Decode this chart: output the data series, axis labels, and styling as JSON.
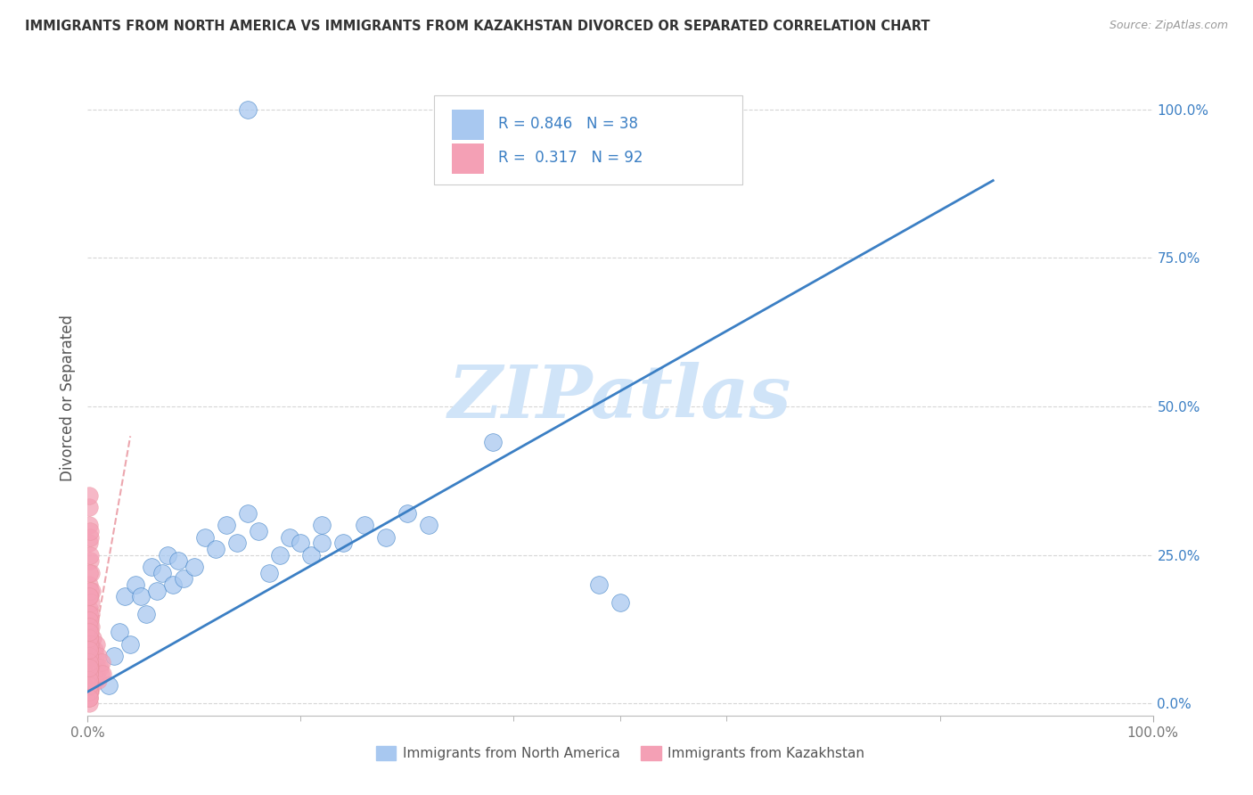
{
  "title": "IMMIGRANTS FROM NORTH AMERICA VS IMMIGRANTS FROM KAZAKHSTAN DIVORCED OR SEPARATED CORRELATION CHART",
  "source": "Source: ZipAtlas.com",
  "ylabel": "Divorced or Separated",
  "xlim": [
    0.0,
    1.0
  ],
  "ylim": [
    -0.02,
    1.05
  ],
  "xtick_positions": [
    0.0,
    1.0
  ],
  "xtick_labels": [
    "0.0%",
    "100.0%"
  ],
  "ytick_positions": [
    0.0,
    0.25,
    0.5,
    0.75,
    1.0
  ],
  "ytick_labels": [
    "0.0%",
    "25.0%",
    "50.0%",
    "75.0%",
    "100.0%"
  ],
  "blue_R": 0.846,
  "blue_N": 38,
  "pink_R": 0.317,
  "pink_N": 92,
  "blue_color": "#A8C8F0",
  "pink_color": "#F4A0B5",
  "blue_line_color": "#3B7FC4",
  "pink_line_color": "#E8909A",
  "watermark": "ZIPatlas",
  "watermark_color": "#D0E4F8",
  "legend_label_blue": "Immigrants from North America",
  "legend_label_pink": "Immigrants from Kazakhstan",
  "title_fontsize": 10.5,
  "blue_scatter_x": [
    0.02,
    0.025,
    0.03,
    0.035,
    0.04,
    0.045,
    0.05,
    0.055,
    0.06,
    0.065,
    0.07,
    0.075,
    0.08,
    0.085,
    0.09,
    0.1,
    0.11,
    0.12,
    0.13,
    0.14,
    0.15,
    0.16,
    0.17,
    0.18,
    0.19,
    0.2,
    0.21,
    0.22,
    0.24,
    0.26,
    0.28,
    0.3,
    0.32,
    0.38,
    0.48,
    0.5,
    0.22,
    0.15
  ],
  "blue_scatter_y": [
    0.03,
    0.08,
    0.12,
    0.18,
    0.1,
    0.2,
    0.18,
    0.15,
    0.23,
    0.19,
    0.22,
    0.25,
    0.2,
    0.24,
    0.21,
    0.23,
    0.28,
    0.26,
    0.3,
    0.27,
    0.32,
    0.29,
    0.22,
    0.25,
    0.28,
    0.27,
    0.25,
    0.3,
    0.27,
    0.3,
    0.28,
    0.32,
    0.3,
    0.44,
    0.2,
    0.17,
    0.27,
    1.0
  ],
  "pink_scatter_x": [
    0.001,
    0.001,
    0.001,
    0.001,
    0.001,
    0.002,
    0.002,
    0.002,
    0.002,
    0.002,
    0.003,
    0.003,
    0.003,
    0.003,
    0.004,
    0.004,
    0.004,
    0.005,
    0.005,
    0.005,
    0.006,
    0.006,
    0.007,
    0.007,
    0.008,
    0.008,
    0.009,
    0.01,
    0.01,
    0.011,
    0.012,
    0.013,
    0.014,
    0.001,
    0.001,
    0.002,
    0.002,
    0.003,
    0.003,
    0.004,
    0.001,
    0.001,
    0.002,
    0.002,
    0.001,
    0.001,
    0.002,
    0.002,
    0.003,
    0.001,
    0.001,
    0.001,
    0.002,
    0.001,
    0.001,
    0.002,
    0.001,
    0.001,
    0.001,
    0.001,
    0.001,
    0.001,
    0.001,
    0.002,
    0.001,
    0.001,
    0.001,
    0.001,
    0.001,
    0.001,
    0.001,
    0.001,
    0.001,
    0.001,
    0.001,
    0.001,
    0.001,
    0.001,
    0.001,
    0.001,
    0.001,
    0.001,
    0.001,
    0.001,
    0.001,
    0.001,
    0.001,
    0.001,
    0.001,
    0.001,
    0.001,
    0.001
  ],
  "pink_scatter_y": [
    0.03,
    0.05,
    0.07,
    0.1,
    0.12,
    0.02,
    0.05,
    0.08,
    0.11,
    0.14,
    0.04,
    0.07,
    0.1,
    0.13,
    0.03,
    0.06,
    0.09,
    0.04,
    0.07,
    0.11,
    0.05,
    0.09,
    0.04,
    0.08,
    0.05,
    0.1,
    0.06,
    0.04,
    0.08,
    0.06,
    0.05,
    0.07,
    0.05,
    0.16,
    0.2,
    0.18,
    0.24,
    0.15,
    0.22,
    0.19,
    0.27,
    0.3,
    0.25,
    0.28,
    0.33,
    0.22,
    0.19,
    0.29,
    0.17,
    0.35,
    0.02,
    0.04,
    0.06,
    0.08,
    0.15,
    0.12,
    0.18,
    0.03,
    0.09,
    0.14,
    0.01,
    0.03,
    0.06,
    0.1,
    0.0,
    0.02,
    0.04,
    0.07,
    0.11,
    0.05,
    0.08,
    0.13,
    0.02,
    0.05,
    0.09,
    0.01,
    0.03,
    0.07,
    0.04,
    0.1,
    0.06,
    0.02,
    0.08,
    0.05,
    0.11,
    0.03,
    0.07,
    0.04,
    0.09,
    0.01,
    0.06,
    0.12
  ],
  "blue_line_x": [
    0.0,
    0.85
  ],
  "blue_line_y": [
    0.02,
    0.88
  ],
  "pink_line_x": [
    0.0,
    0.04
  ],
  "pink_line_y": [
    0.04,
    0.45
  ]
}
